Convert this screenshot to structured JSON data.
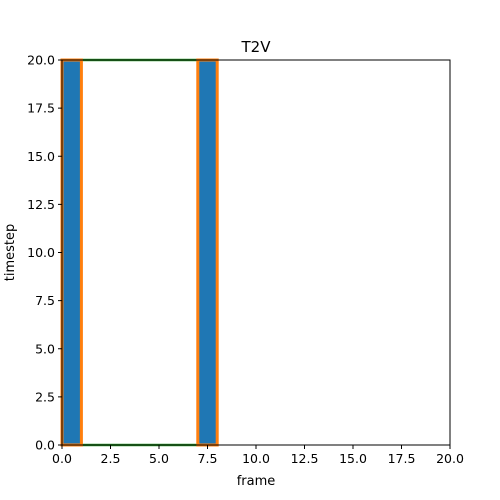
{
  "chart_data": {
    "type": "bar",
    "title": "T2V",
    "xlabel": "frame",
    "ylabel": "timestep",
    "xlim": [
      0,
      20
    ],
    "ylim": [
      0,
      20
    ],
    "xticks": [
      "0.0",
      "2.5",
      "5.0",
      "7.5",
      "10.0",
      "12.5",
      "15.0",
      "17.5",
      "20.0"
    ],
    "yticks": [
      "0.0",
      "2.5",
      "5.0",
      "7.5",
      "10.0",
      "12.5",
      "15.0",
      "17.5",
      "20.0"
    ],
    "grid": false,
    "bars": [
      {
        "x_start": 0,
        "x_end": 1,
        "height": 20,
        "color": "#1f77b4"
      },
      {
        "x_start": 7,
        "x_end": 8,
        "height": 20,
        "color": "#1f77b4"
      }
    ],
    "frames": [
      {
        "x_start": 0,
        "x_end": 1,
        "y_start": 0,
        "y_end": 20,
        "color": "#ff7f0e"
      },
      {
        "x_start": 7,
        "x_end": 8,
        "y_start": 0,
        "y_end": 20,
        "color": "#ff7f0e"
      }
    ],
    "span": {
      "x_start": 0,
      "x_end": 8,
      "y_start": 0,
      "y_end": 20,
      "color": "#2ca02c"
    }
  }
}
